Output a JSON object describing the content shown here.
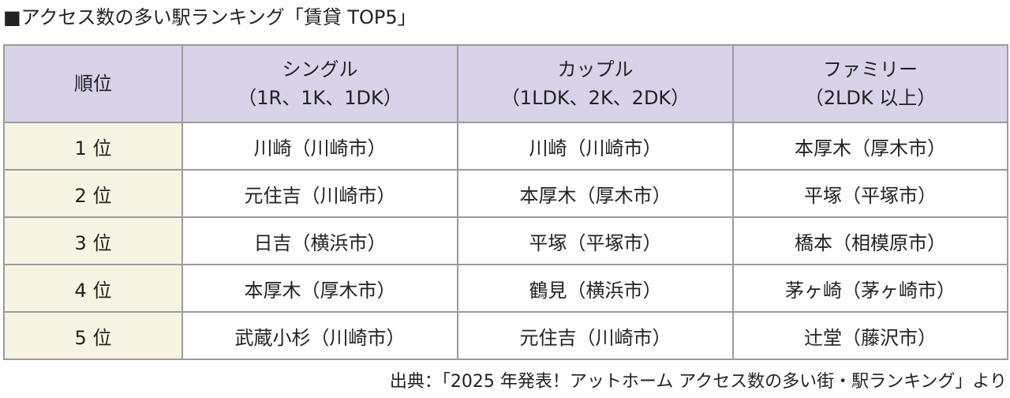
{
  "title": "■アクセス数の多い駅ランキング「賃貸 TOP5」",
  "colors": {
    "header_bg": "#d8d3e8",
    "rank_bg": "#f8f4e3",
    "border": "#9b9b9b"
  },
  "table": {
    "headers": [
      {
        "lines": [
          "順位"
        ]
      },
      {
        "lines": [
          "シングル",
          "（1R、1K、1DK）"
        ]
      },
      {
        "lines": [
          "カップル",
          "（1LDK、2K、2DK）"
        ]
      },
      {
        "lines": [
          "ファミリー",
          "（2LDK 以上）"
        ]
      }
    ],
    "rows": [
      {
        "rank": "1 位",
        "single": "川崎（川崎市）",
        "couple": "川崎（川崎市）",
        "family": "本厚木（厚木市）"
      },
      {
        "rank": "2 位",
        "single": "元住吉（川崎市）",
        "couple": "本厚木（厚木市）",
        "family": "平塚（平塚市）"
      },
      {
        "rank": "3 位",
        "single": "日吉（横浜市）",
        "couple": "平塚（平塚市）",
        "family": "橋本（相模原市）"
      },
      {
        "rank": "4 位",
        "single": "本厚木（厚木市）",
        "couple": "鶴見（横浜市）",
        "family": "茅ヶ崎（茅ヶ崎市）"
      },
      {
        "rank": "5 位",
        "single": "武蔵小杉（川崎市）",
        "couple": "元住吉（川崎市）",
        "family": "辻堂（藤沢市）"
      }
    ]
  },
  "source": "出典：「2025 年発表！アットホーム アクセス数の多い街・駅ランキング」より"
}
